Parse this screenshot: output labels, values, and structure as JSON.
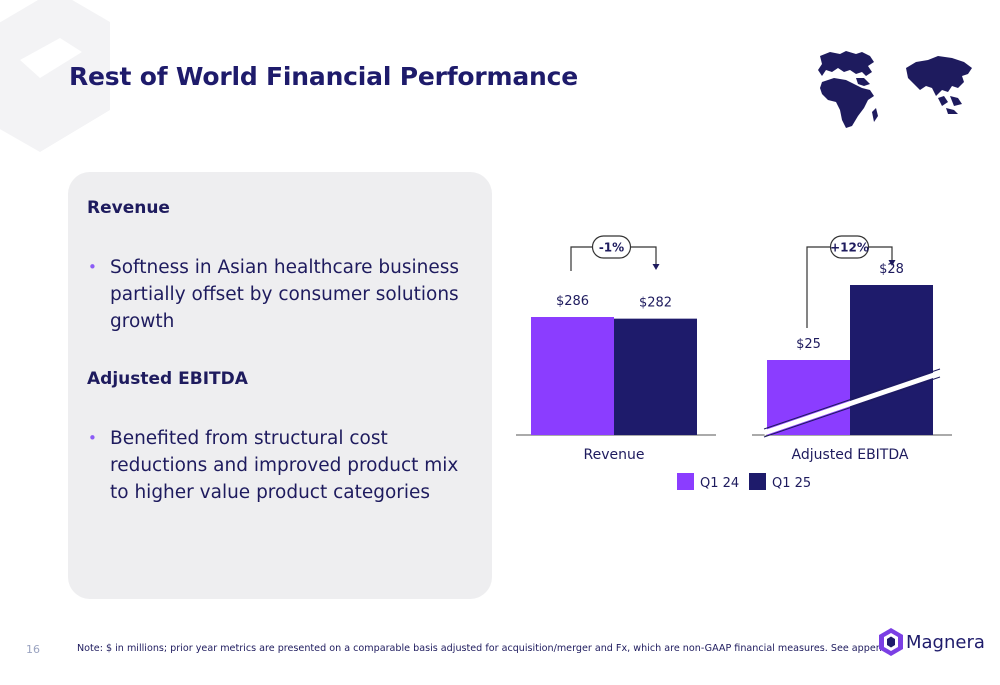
{
  "slide": {
    "title": "Rest of World Financial Performance",
    "page_number": "16",
    "footer_note": "Note: $ in millions; prior year metrics are presented on a comparable basis adjusted for acquisition/merger and Fx, which are non-GAAP financial measures.  See appendix.",
    "brand_name": "Magnera"
  },
  "panel": {
    "revenue_heading": "Revenue",
    "revenue_bullet": "Softness in Asian healthcare business partially offset by consumer solutions growth",
    "ebitda_heading": "Adjusted EBITDA",
    "ebitda_bullet": "Benefited from structural cost reductions and improved product mix to higher value product categories"
  },
  "colors": {
    "q1_24": "#8b3dff",
    "q1_25": "#1e1b6b",
    "panel_bg": "#eeeef0",
    "title": "#1e1b6b"
  },
  "icons": [
    "world-map-africa-icon",
    "world-map-asia-icon",
    "magnera-logo-icon"
  ],
  "chart_data": {
    "type": "bar",
    "categories": [
      "Revenue",
      "Adjusted EBITDA"
    ],
    "series": [
      {
        "name": "Q1 24",
        "values": [
          286,
          25
        ],
        "labels": [
          "$286",
          "$25"
        ]
      },
      {
        "name": "Q1 25",
        "values": [
          282,
          28
        ],
        "labels": [
          "$282",
          "$28"
        ]
      }
    ],
    "changes": [
      "-1%",
      "+12%"
    ],
    "axis_break": [
      false,
      true
    ],
    "legend": "bottom",
    "grid": false
  }
}
